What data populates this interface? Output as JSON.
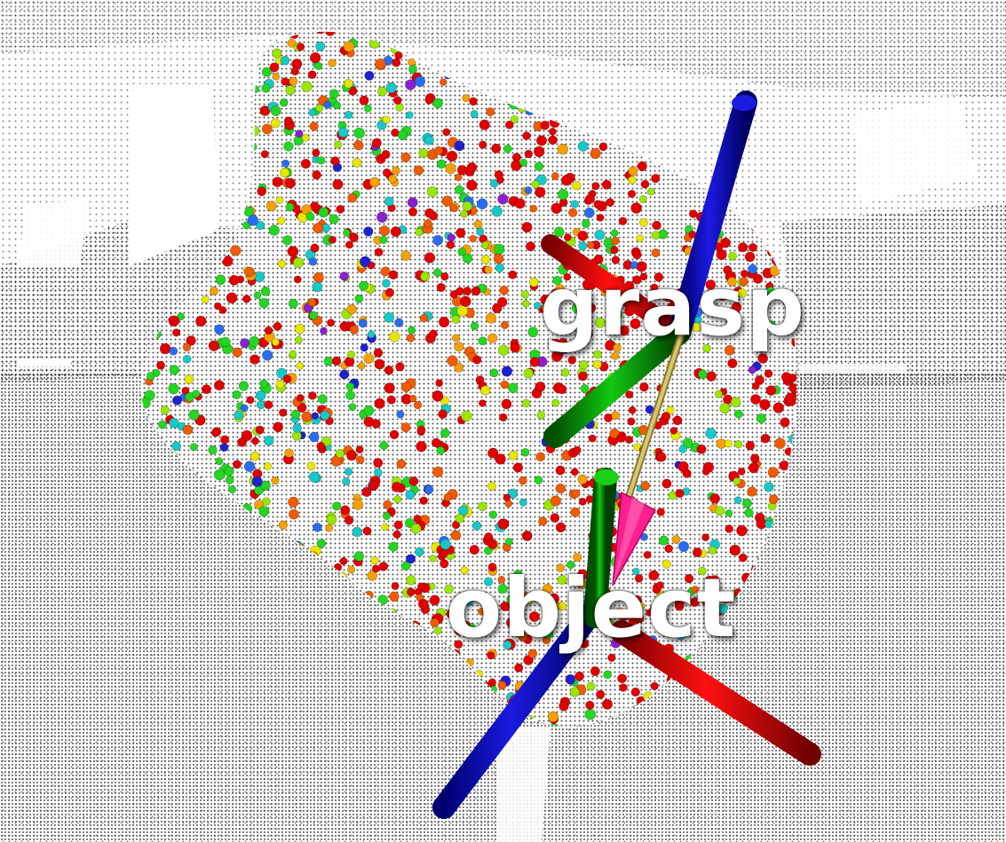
{
  "scene": {
    "labels": {
      "grasp": "grasp",
      "object": "object"
    },
    "axis_colors": {
      "x": "#d40000",
      "y": "#00aa00",
      "z": "#0000c8"
    },
    "connector_color": "#c8b45a",
    "arrow_color": "#ff1f8e",
    "point_palette": [
      "#e00000",
      "#f05a00",
      "#f5a000",
      "#e6e600",
      "#9be600",
      "#22d622",
      "#18c8c8",
      "#2a6cf0",
      "#2020d0",
      "#8a20d0"
    ],
    "background_point_color": "#000000"
  }
}
